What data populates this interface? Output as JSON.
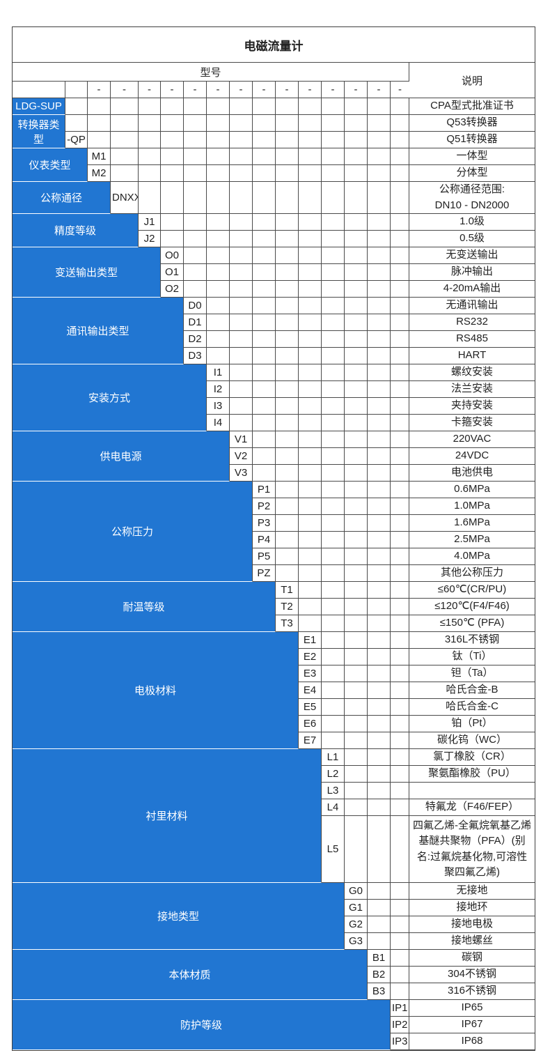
{
  "colors": {
    "accent_blue": "#2176d2",
    "grid_border": "#4a4a4a",
    "text": "#1f1f1f",
    "category_text": "#ffffff",
    "background": "#ffffff"
  },
  "table": {
    "title": "电磁流量计",
    "model_header": "型号",
    "desc_header": "说明",
    "dash": "-",
    "sections": [
      {
        "label": "LDG-SUP",
        "code_col": 1,
        "rows": [
          {
            "code": "",
            "desc": "CPA型式批准证书"
          }
        ]
      },
      {
        "label": "转换器类型",
        "code_col": 1,
        "rows": [
          {
            "code": "",
            "desc": "Q53转换器"
          },
          {
            "code": "-QP",
            "desc": "Q51转换器"
          }
        ]
      },
      {
        "label": "仪表类型",
        "code_col": 2,
        "rows": [
          {
            "code": "M1",
            "desc": "一体型"
          },
          {
            "code": "M2",
            "desc": "分体型"
          }
        ]
      },
      {
        "label": "公称通径",
        "code_col": 3,
        "rows": [
          {
            "code": "DNXX",
            "desc": "公称通径范围:\nDN10 - DN2000",
            "h": 46
          }
        ]
      },
      {
        "label": "精度等级",
        "code_col": 4,
        "rows": [
          {
            "code": "J1",
            "desc": "1.0级"
          },
          {
            "code": "J2",
            "desc": "0.5级"
          }
        ]
      },
      {
        "label": "变送输出类型",
        "code_col": 5,
        "rows": [
          {
            "code": "O0",
            "desc": "无变送输出"
          },
          {
            "code": "O1",
            "desc": "脉冲输出"
          },
          {
            "code": "O2",
            "desc": "4-20mA输出"
          }
        ]
      },
      {
        "label": "通讯输出类型",
        "code_col": 6,
        "rows": [
          {
            "code": "D0",
            "desc": "无通讯输出"
          },
          {
            "code": "D1",
            "desc": "RS232"
          },
          {
            "code": "D2",
            "desc": "RS485"
          },
          {
            "code": "D3",
            "desc": "HART"
          }
        ]
      },
      {
        "label": "安装方式",
        "code_col": 7,
        "rows": [
          {
            "code": "I1",
            "desc": "螺纹安装"
          },
          {
            "code": "I2",
            "desc": "法兰安装"
          },
          {
            "code": "I3",
            "desc": "夹持安装"
          },
          {
            "code": "I4",
            "desc": "卡箍安装"
          }
        ]
      },
      {
        "label": "供电电源",
        "code_col": 8,
        "rows": [
          {
            "code": "V1",
            "desc": "220VAC"
          },
          {
            "code": "V2",
            "desc": "24VDC"
          },
          {
            "code": "V3",
            "desc": "电池供电"
          }
        ]
      },
      {
        "label": "公称压力",
        "code_col": 9,
        "rows": [
          {
            "code": "P1",
            "desc": "0.6MPa"
          },
          {
            "code": "P2",
            "desc": "1.0MPa"
          },
          {
            "code": "P3",
            "desc": "1.6MPa"
          },
          {
            "code": "P4",
            "desc": "2.5MPa"
          },
          {
            "code": "P5",
            "desc": "4.0MPa"
          },
          {
            "code": "PZ",
            "desc": "其他公称压力"
          }
        ]
      },
      {
        "label": "耐温等级",
        "code_col": 10,
        "rows": [
          {
            "code": "T1",
            "desc": "≤60℃(CR/PU)"
          },
          {
            "code": "T2",
            "desc": "≤120℃(F4/F46)"
          },
          {
            "code": "T3",
            "desc": "≤150℃ (PFA)"
          }
        ]
      },
      {
        "label": "电极材料",
        "code_col": 11,
        "rows": [
          {
            "code": "E1",
            "desc": "316L不锈钢"
          },
          {
            "code": "E2",
            "desc": "钛（Ti）"
          },
          {
            "code": "E3",
            "desc": "钽（Ta）"
          },
          {
            "code": "E4",
            "desc": "哈氏合金-B"
          },
          {
            "code": "E5",
            "desc": "哈氏合金-C"
          },
          {
            "code": "E6",
            "desc": "铂（Pt）"
          },
          {
            "code": "E7",
            "desc": "碳化钨（WC）"
          }
        ]
      },
      {
        "label": "衬里材料",
        "code_col": 12,
        "rows": [
          {
            "code": "L1",
            "desc": "氯丁橡胶（CR）"
          },
          {
            "code": "L2",
            "desc": "聚氨酯橡胶（PU）"
          },
          {
            "code": "L3",
            "desc": ""
          },
          {
            "code": "L4",
            "desc": "特氟龙（F46/FEP）"
          },
          {
            "code": "L5",
            "desc": "四氟乙烯-全氟烷氧基乙烯基醚共聚物（PFA）(别名:过氟烷基化物,可溶性聚四氟乙烯)",
            "h": 96
          }
        ]
      },
      {
        "label": "接地类型",
        "code_col": 13,
        "rows": [
          {
            "code": "G0",
            "desc": "无接地"
          },
          {
            "code": "G1",
            "desc": "接地环"
          },
          {
            "code": "G2",
            "desc": "接地电极"
          },
          {
            "code": "G3",
            "desc": "接地螺丝"
          }
        ]
      },
      {
        "label": "本体材质",
        "code_col": 14,
        "rows": [
          {
            "code": "B1",
            "desc": "碳钢"
          },
          {
            "code": "B2",
            "desc": "304不锈钢"
          },
          {
            "code": "B3",
            "desc": "316不锈钢"
          }
        ]
      },
      {
        "label": "防护等级",
        "code_col": 15,
        "rows": [
          {
            "code": "IP1",
            "desc": "IP65"
          },
          {
            "code": "IP2",
            "desc": "IP67"
          },
          {
            "code": "IP3",
            "desc": "IP68"
          }
        ]
      }
    ]
  }
}
